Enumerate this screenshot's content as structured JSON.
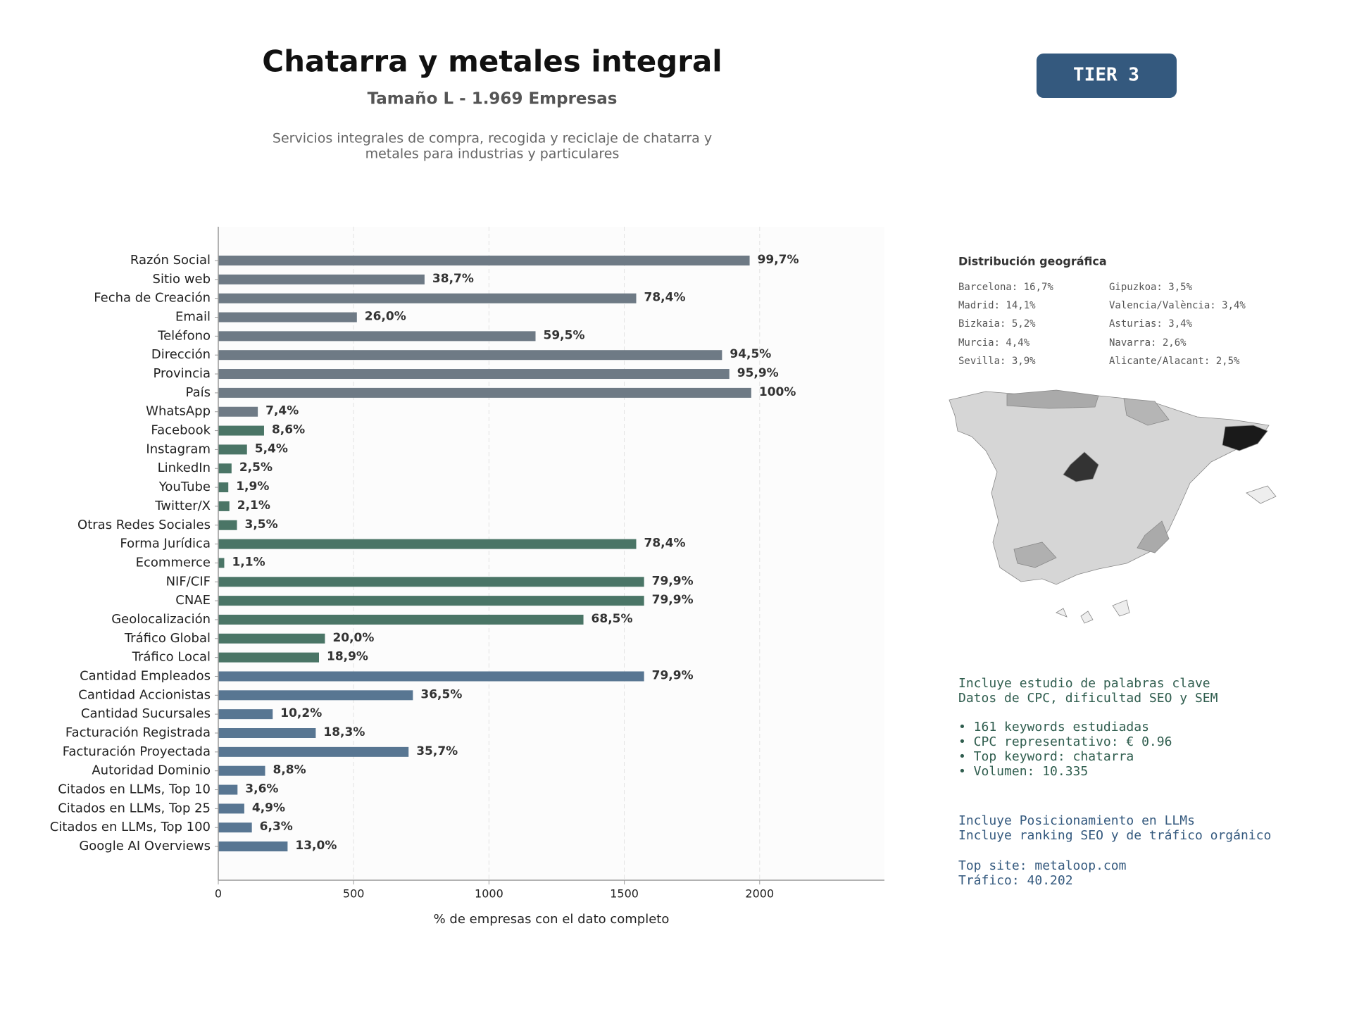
{
  "header": {
    "title": "Chatarra y metales integral",
    "subtitle": "Tamaño L - 1.969 Empresas",
    "description": [
      "Servicios integrales de compra, recogida y reciclaje de chatarra y",
      "metales para industrias y particulares"
    ],
    "badge": "TIER 3"
  },
  "chart_data": {
    "type": "barh",
    "categories": [
      "Razón Social",
      "Sitio web",
      "Fecha de Creación",
      "Email",
      "Teléfono",
      "Dirección",
      "Provincia",
      "País",
      "WhatsApp",
      "Facebook",
      "Instagram",
      "LinkedIn",
      "YouTube",
      "Twitter/X",
      "Otras Redes Sociales",
      "Forma Jurídica",
      "Ecommerce",
      "NIF/CIF",
      "CNAE",
      "Geolocalización",
      "Tráfico Global",
      "Tráfico Local",
      "Cantidad Empleados",
      "Cantidad Accionistas",
      "Cantidad Sucursales",
      "Facturación Registrada",
      "Facturación Proyectada",
      "Autoridad Dominio",
      "Citados en LLMs, Top 10",
      "Citados en LLMs, Top 25",
      "Citados en LLMs, Top 100",
      "Google AI Overviews"
    ],
    "values": [
      1963,
      762,
      1544,
      512,
      1172,
      1861,
      1888,
      1969,
      146,
      169,
      106,
      49,
      37,
      41,
      69,
      1544,
      22,
      1573,
      1573,
      1349,
      394,
      372,
      1573,
      719,
      201,
      360,
      703,
      173,
      71,
      96,
      124,
      256
    ],
    "value_labels": [
      "99,7%",
      "38,7%",
      "78,4%",
      "26,0%",
      "59,5%",
      "94,5%",
      "95,9%",
      "100%",
      "7,4%",
      "8,6%",
      "5,4%",
      "2,5%",
      "1,9%",
      "2,1%",
      "3,5%",
      "78,4%",
      "1,1%",
      "79,9%",
      "79,9%",
      "68,5%",
      "20,0%",
      "18,9%",
      "79,9%",
      "36,5%",
      "10,2%",
      "18,3%",
      "35,7%",
      "8,8%",
      "3,6%",
      "4,9%",
      "6,3%",
      "13,0%"
    ],
    "colors": [
      "#6e7a85",
      "#6e7a85",
      "#6e7a85",
      "#6e7a85",
      "#6e7a85",
      "#6e7a85",
      "#6e7a85",
      "#6e7a85",
      "#6e7a85",
      "#4a7566",
      "#4a7566",
      "#4a7566",
      "#4a7566",
      "#4a7566",
      "#4a7566",
      "#4a7566",
      "#4a7566",
      "#4a7566",
      "#4a7566",
      "#4a7566",
      "#4a7566",
      "#4a7566",
      "#587692",
      "#587692",
      "#587692",
      "#587692",
      "#587692",
      "#587692",
      "#587692",
      "#587692",
      "#587692",
      "#587692"
    ],
    "xlim": [
      0,
      2461
    ],
    "xticks": [
      0,
      500,
      1000,
      1500,
      2000
    ],
    "grid": true,
    "xlabel": "% de empresas con el dato completo"
  },
  "geo": {
    "title": "Distribución geográfica",
    "left": [
      "Barcelona: 16,7%",
      "Madrid: 14,1%",
      "Bizkaia: 5,2%",
      "Murcia: 4,4%",
      "Sevilla: 3,9%"
    ],
    "right": [
      "Gipuzkoa: 3,5%",
      "Valencia/València: 3,4%",
      "Asturias: 3,4%",
      "Navarra: 2,6%",
      "Alicante/Alacant: 2,5%"
    ]
  },
  "seo": {
    "lines": [
      "Incluye estudio de palabras clave",
      "Datos de CPC, dificultad SEO y SEM"
    ],
    "bullets": [
      "• 161 keywords estudiadas",
      "• CPC representativo: € 0.96",
      "• Top keyword: chatarra",
      "• Volumen: 10.335"
    ]
  },
  "llm": {
    "lines": [
      "Incluye Posicionamiento en LLMs",
      "Incluye ranking SEO y de tráfico orgánico"
    ],
    "site": [
      "Top site: metaloop.com",
      "Tráfico: 40.202"
    ]
  }
}
